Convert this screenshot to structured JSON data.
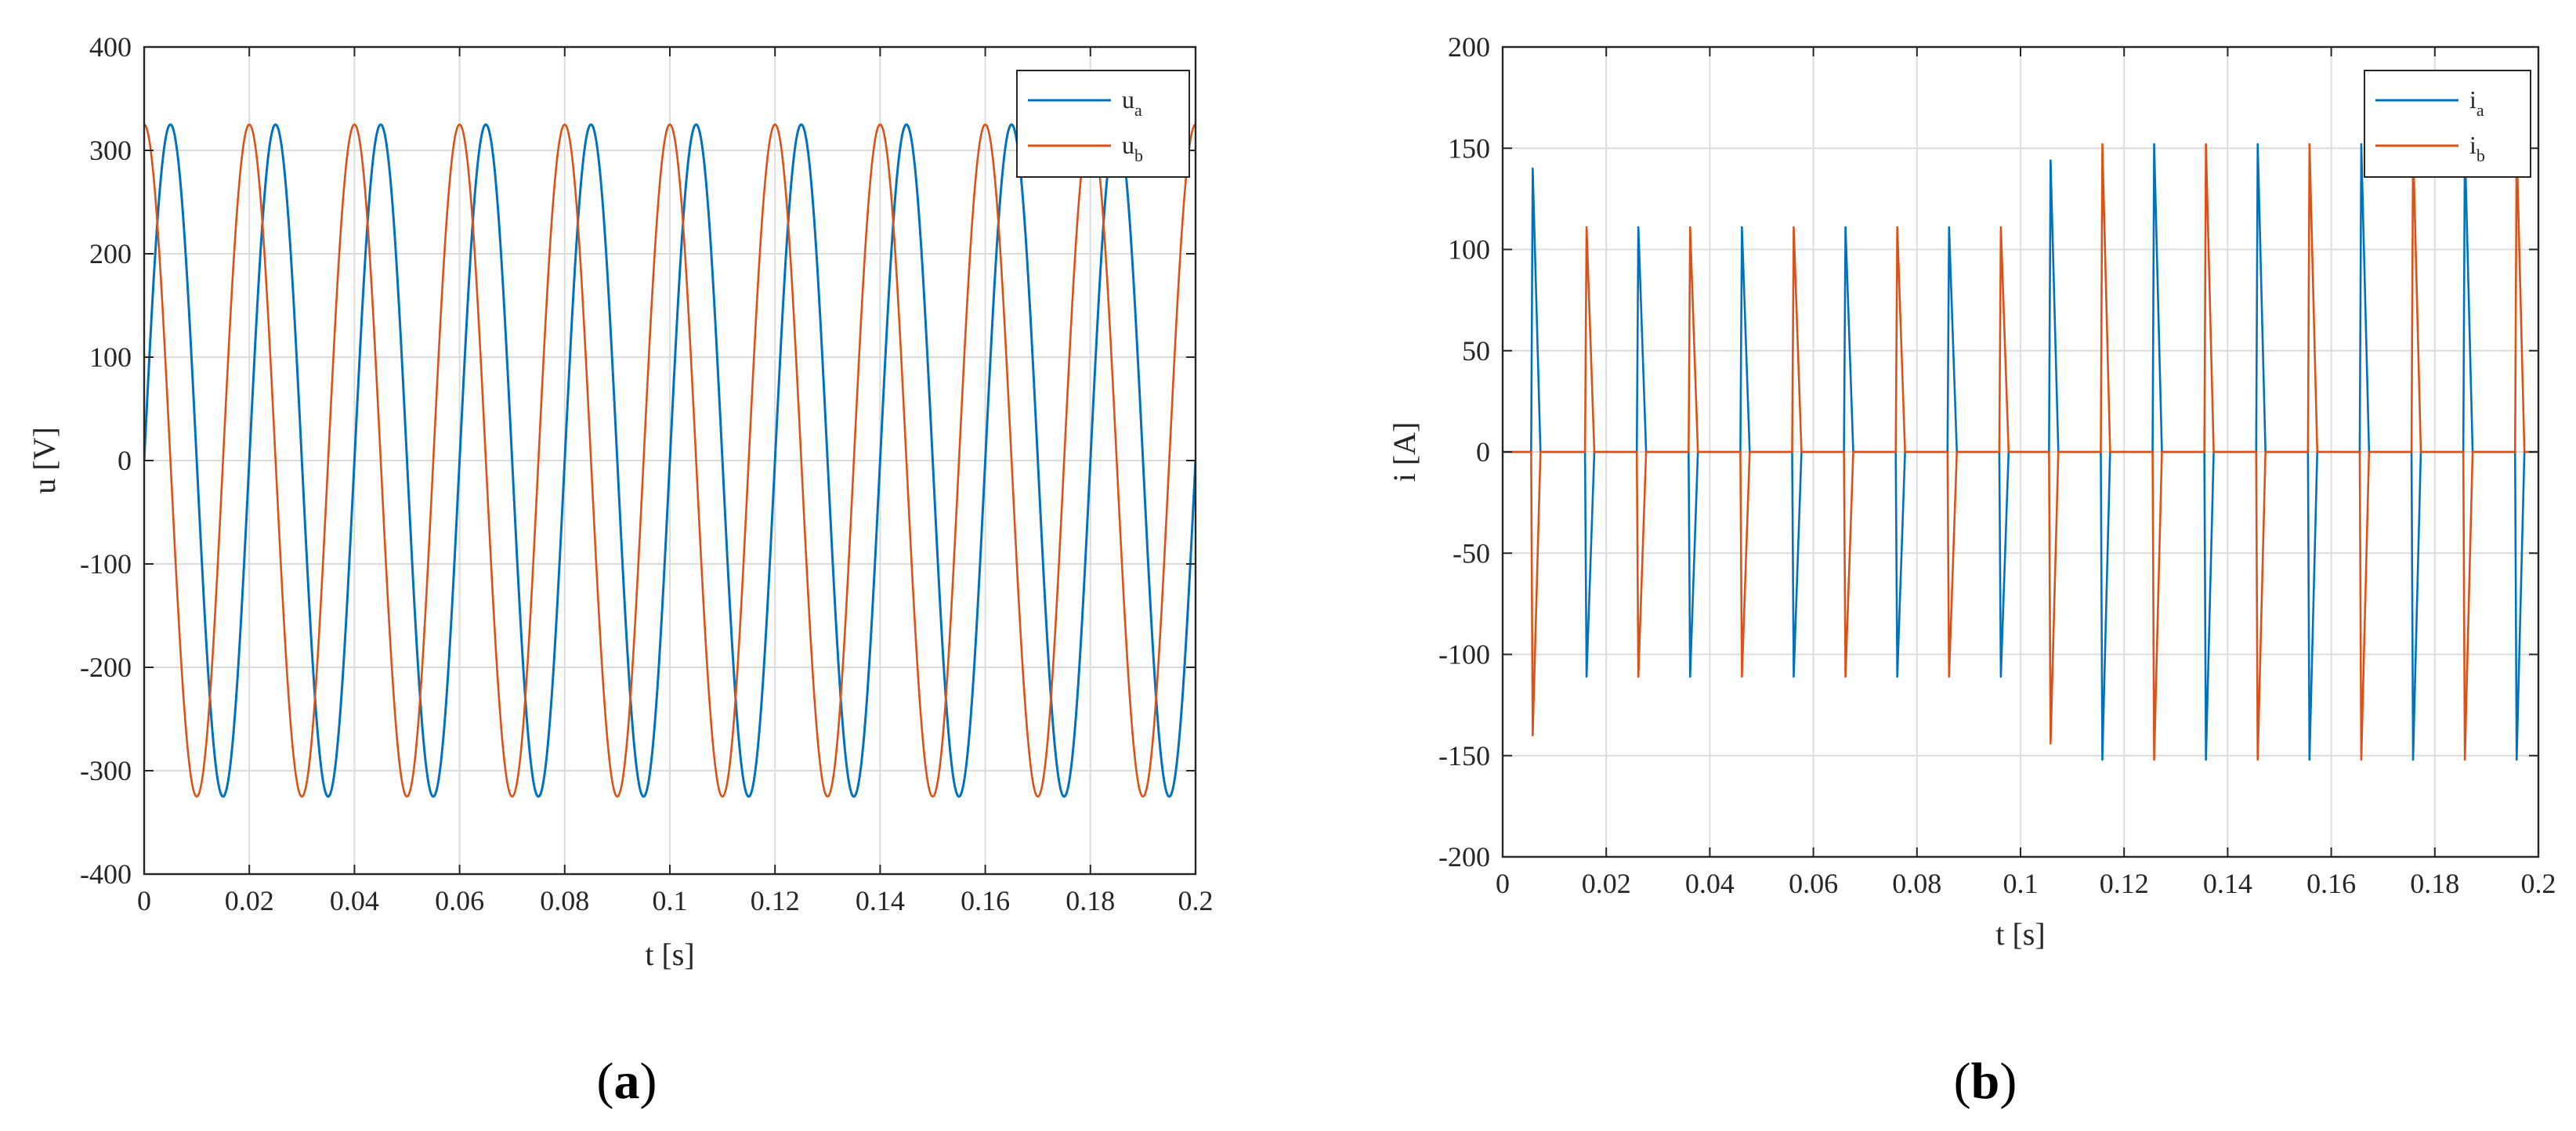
{
  "figure": {
    "panels": [
      {
        "id": "a",
        "caption_open": "(",
        "caption_letter": "a",
        "caption_close": ")"
      },
      {
        "id": "b",
        "caption_open": "(",
        "caption_letter": "b",
        "caption_close": ")"
      }
    ]
  },
  "chart_data": [
    {
      "type": "line",
      "xlabel": "t [s]",
      "ylabel": "u [V]",
      "xlim": [
        0,
        0.2
      ],
      "ylim": [
        -400,
        400
      ],
      "xticks": [
        0,
        0.02,
        0.04,
        0.06,
        0.08,
        0.1,
        0.12,
        0.14,
        0.16,
        0.18,
        0.2
      ],
      "xtick_labels": [
        "0",
        "0.02",
        "0.04",
        "0.06",
        "0.08",
        "0.1",
        "0.12",
        "0.14",
        "0.16",
        "0.18",
        "0.2"
      ],
      "yticks": [
        -400,
        -300,
        -200,
        -100,
        0,
        100,
        200,
        300,
        400
      ],
      "ytick_labels": [
        "-400",
        "-300",
        "-200",
        "-100",
        "0",
        "100",
        "200",
        "300",
        "400"
      ],
      "grid": true,
      "legend_position": "top-right",
      "series": [
        {
          "name": "u",
          "subscript": "a",
          "color": "#0072BD",
          "waveform": "sine",
          "amplitude": 325,
          "frequency_hz": 50,
          "phase_deg": 0
        },
        {
          "name": "u",
          "subscript": "b",
          "color": "#D95319",
          "waveform": "sine",
          "amplitude": 325,
          "frequency_hz": 50,
          "phase_deg": 90
        }
      ]
    },
    {
      "type": "line",
      "xlabel": "t [s]",
      "ylabel": "i [A]",
      "xlim": [
        0,
        0.2
      ],
      "ylim": [
        -200,
        200
      ],
      "xticks": [
        0,
        0.02,
        0.04,
        0.06,
        0.08,
        0.1,
        0.12,
        0.14,
        0.16,
        0.18,
        0.2
      ],
      "xtick_labels": [
        "0",
        "0.02",
        "0.04",
        "0.06",
        "0.08",
        "0.1",
        "0.12",
        "0.14",
        "0.16",
        "0.18",
        "0.2"
      ],
      "yticks": [
        -200,
        -150,
        -100,
        -50,
        0,
        50,
        100,
        150,
        200
      ],
      "ytick_labels": [
        "-200",
        "-150",
        "-100",
        "-50",
        "0",
        "50",
        "100",
        "150",
        "200"
      ],
      "grid": true,
      "legend_position": "top-right",
      "series": [
        {
          "name": "i",
          "subscript": "a",
          "color": "#0072BD",
          "pulses": [
            {
              "t": 0.0058,
              "peak": 140
            },
            {
              "t": 0.0078,
              "peak": 0
            },
            {
              "t": 0.0162,
              "peak": -111
            },
            {
              "t": 0.0262,
              "peak": 111
            },
            {
              "t": 0.0362,
              "peak": -111
            },
            {
              "t": 0.0462,
              "peak": 111
            },
            {
              "t": 0.0562,
              "peak": -111
            },
            {
              "t": 0.0662,
              "peak": 111
            },
            {
              "t": 0.0762,
              "peak": -111
            },
            {
              "t": 0.0862,
              "peak": 111
            },
            {
              "t": 0.0962,
              "peak": -111
            },
            {
              "t": 0.1058,
              "peak": 144
            },
            {
              "t": 0.1158,
              "peak": -152
            },
            {
              "t": 0.1258,
              "peak": 152
            },
            {
              "t": 0.1358,
              "peak": -152
            },
            {
              "t": 0.1458,
              "peak": 152
            },
            {
              "t": 0.1558,
              "peak": -152
            },
            {
              "t": 0.1658,
              "peak": 152
            },
            {
              "t": 0.1758,
              "peak": -152
            },
            {
              "t": 0.1858,
              "peak": 152
            },
            {
              "t": 0.1958,
              "peak": -152
            }
          ]
        },
        {
          "name": "i",
          "subscript": "b",
          "color": "#D95319",
          "pulses": [
            {
              "t": 0.0058,
              "peak": -140
            },
            {
              "t": 0.0162,
              "peak": 111
            },
            {
              "t": 0.0262,
              "peak": -111
            },
            {
              "t": 0.0362,
              "peak": 111
            },
            {
              "t": 0.0462,
              "peak": -111
            },
            {
              "t": 0.0562,
              "peak": 111
            },
            {
              "t": 0.0662,
              "peak": -111
            },
            {
              "t": 0.0762,
              "peak": 111
            },
            {
              "t": 0.0862,
              "peak": -111
            },
            {
              "t": 0.0962,
              "peak": 111
            },
            {
              "t": 0.1058,
              "peak": -144
            },
            {
              "t": 0.1158,
              "peak": 152
            },
            {
              "t": 0.1258,
              "peak": -152
            },
            {
              "t": 0.1358,
              "peak": 152
            },
            {
              "t": 0.1458,
              "peak": -152
            },
            {
              "t": 0.1558,
              "peak": 152
            },
            {
              "t": 0.1658,
              "peak": -152
            },
            {
              "t": 0.1758,
              "peak": 152
            },
            {
              "t": 0.1858,
              "peak": -152
            },
            {
              "t": 0.1958,
              "peak": 152
            }
          ]
        }
      ]
    }
  ]
}
